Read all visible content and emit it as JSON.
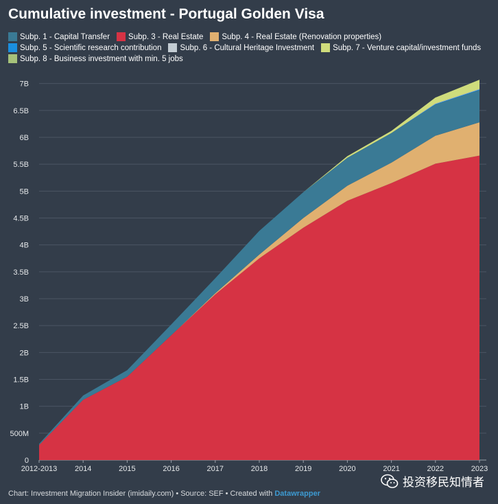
{
  "chart_data": {
    "type": "area",
    "stacked": true,
    "title": "Cumulative investment - Portugal Golden Visa",
    "categories": [
      "2012-2013",
      "2014",
      "2015",
      "2016",
      "2017",
      "2018",
      "2019",
      "2020",
      "2021",
      "2022",
      "2023"
    ],
    "ylim": [
      0,
      7.2
    ],
    "yticks": [
      "0",
      "500M",
      "1B",
      "1.5B",
      "2B",
      "2.5B",
      "3B",
      "3.5B",
      "4B",
      "4.5B",
      "5B",
      "5.5B",
      "6B",
      "6.5B",
      "7B"
    ],
    "grid": true,
    "legend": "top",
    "series": [
      {
        "name": "Subp. 1 - Capital Transfer",
        "color": "#3a7a95",
        "values": [
          0.02,
          0.08,
          0.12,
          0.2,
          0.28,
          0.44,
          0.48,
          0.52,
          0.55,
          0.58,
          0.6
        ]
      },
      {
        "name": "Subp. 3 - Real Estate",
        "color": "#d63344",
        "values": [
          0.28,
          1.12,
          1.55,
          2.32,
          3.08,
          3.75,
          4.32,
          4.82,
          5.15,
          5.51,
          5.66
        ]
      },
      {
        "name": "Subp. 4 - Real Estate (Renovation properties)",
        "color": "#e0b070",
        "values": [
          0,
          0,
          0,
          0,
          0.02,
          0.07,
          0.18,
          0.28,
          0.38,
          0.52,
          0.62
        ]
      },
      {
        "name": "Subp. 5 - Scientific research contribution",
        "color": "#1a8fe0",
        "values": [
          0,
          0,
          0,
          0,
          0,
          0,
          0,
          0,
          0,
          0.01,
          0.01
        ]
      },
      {
        "name": "Subp. 6 - Cultural Heritage Investment",
        "color": "#c3ccd3",
        "values": [
          0,
          0,
          0,
          0,
          0,
          0,
          0,
          0,
          0,
          0.01,
          0.01
        ]
      },
      {
        "name": "Subp. 7 - Venture capital/investment funds",
        "color": "#cfdc7c",
        "values": [
          0,
          0,
          0,
          0,
          0,
          0,
          0,
          0.03,
          0.04,
          0.11,
          0.17
        ]
      },
      {
        "name": "Subp. 8 - Business investment with min. 5 jobs",
        "color": "#a6c27a",
        "values": [
          0,
          0,
          0,
          0,
          0,
          0,
          0,
          0,
          0,
          0,
          0
        ]
      }
    ]
  },
  "footer": {
    "text": "Chart: Investment Migration Insider (imidaily.com) • Source: SEF • Created with ",
    "credit": "Datawrapper"
  },
  "watermark": {
    "text": "投资移民知情者",
    "icon": "wechat-icon"
  },
  "colors": {
    "background": "#333d4a",
    "grid": "#4b5563"
  }
}
